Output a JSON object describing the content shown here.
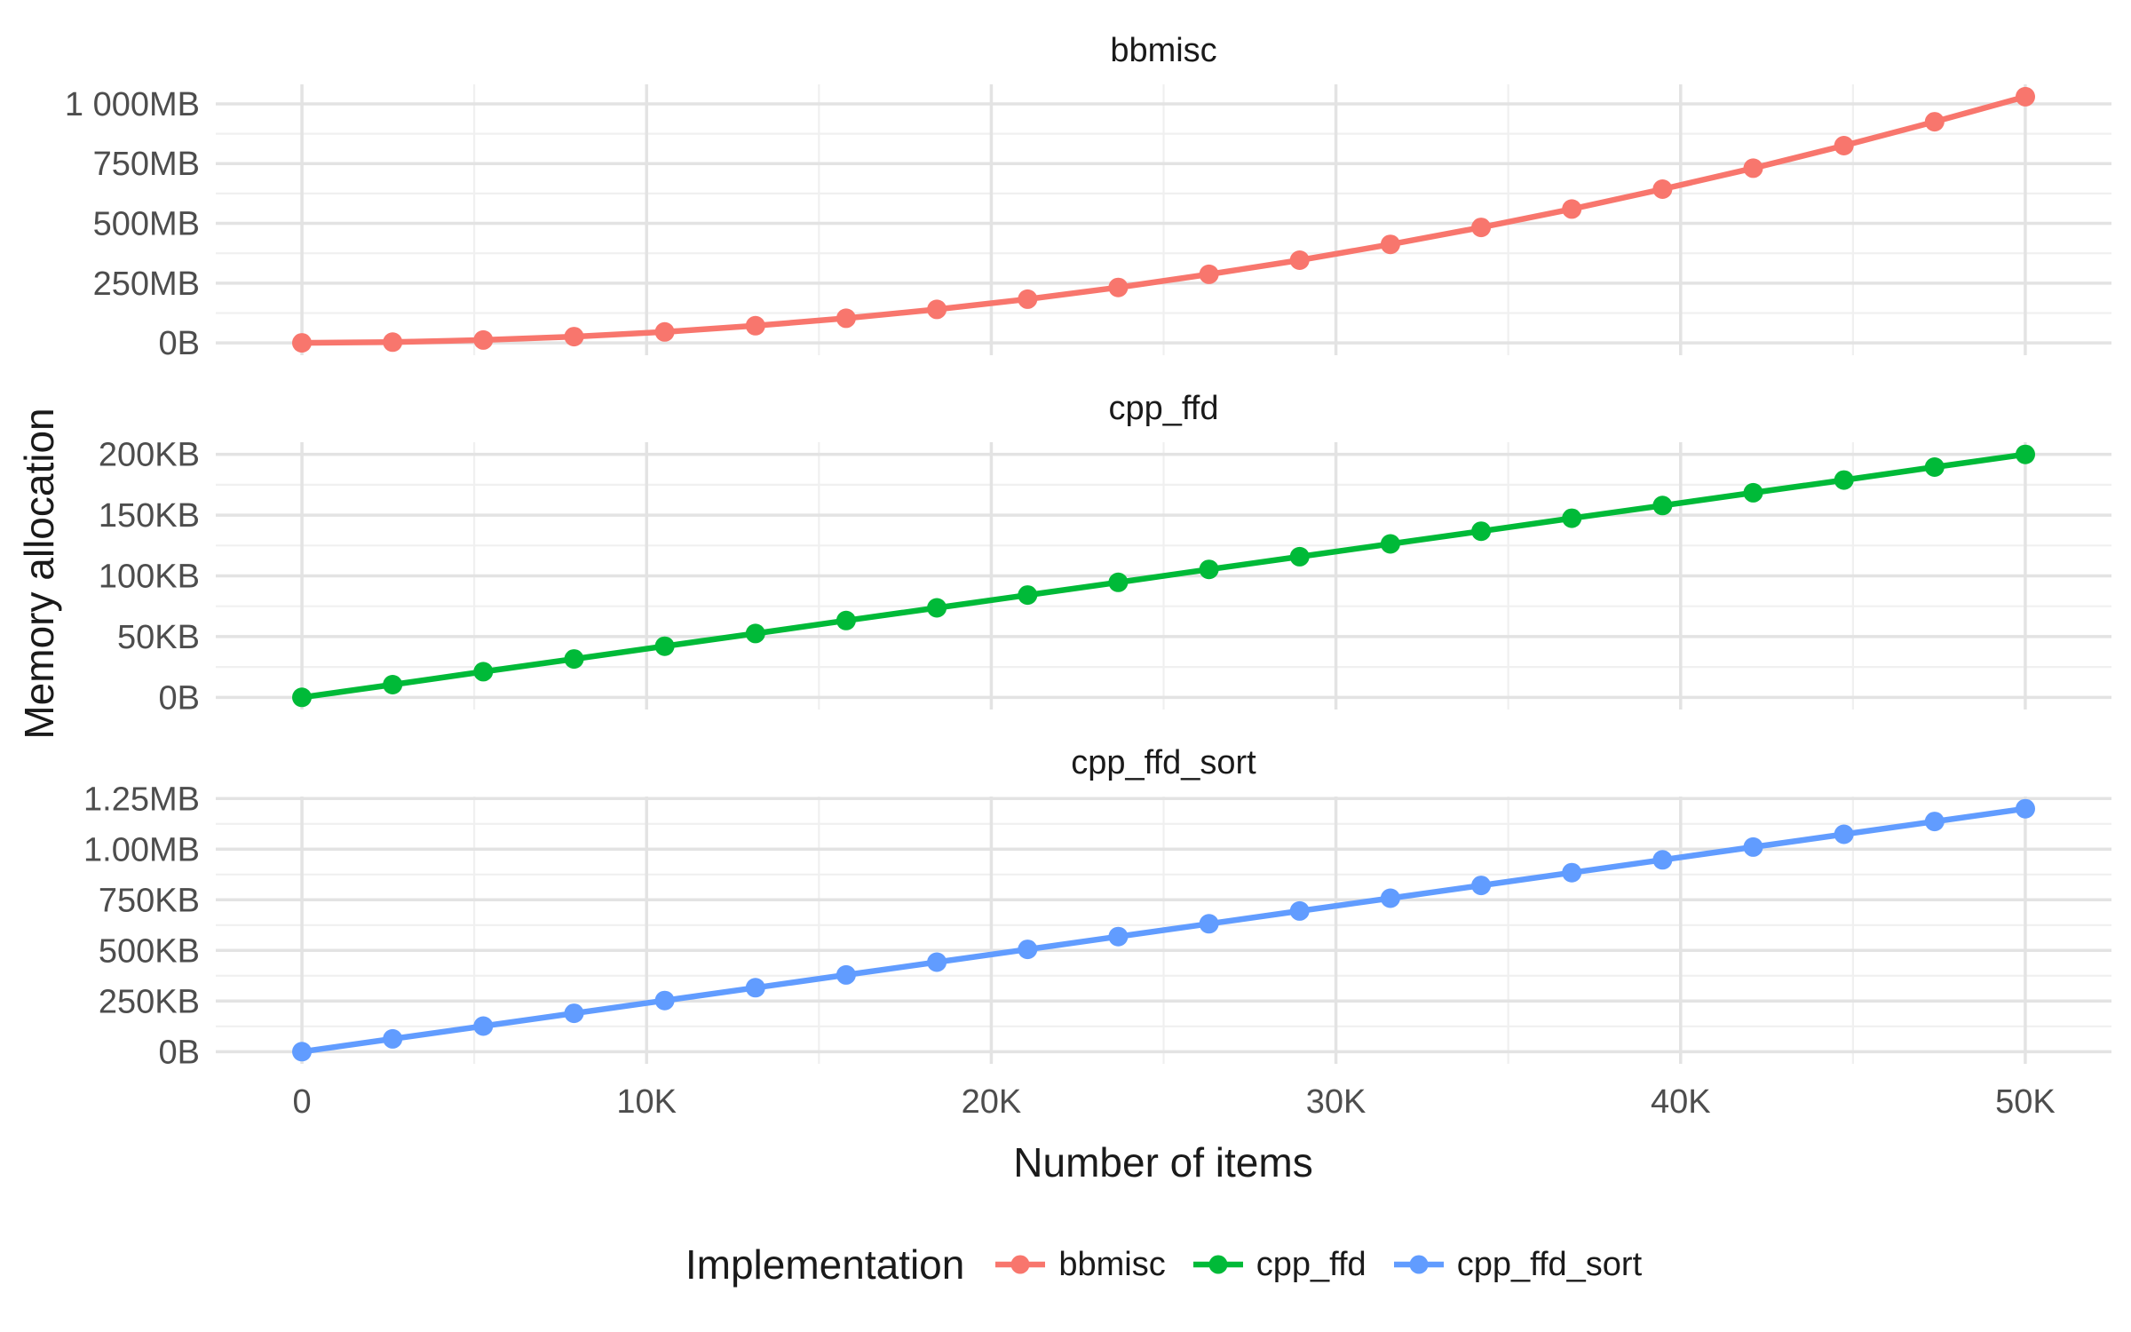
{
  "figure": {
    "y_axis_title": "Memory allocation",
    "x_axis_title": "Number of items",
    "legend": {
      "title": "Implementation",
      "items": [
        {
          "label": "bbmisc",
          "color": "#F8766D"
        },
        {
          "label": "cpp_ffd",
          "color": "#00BA38"
        },
        {
          "label": "cpp_ffd_sort",
          "color": "#619CFF"
        }
      ]
    },
    "colors": {
      "background": "#ffffff",
      "grid_major": "#e3e3e3",
      "grid_minor": "#f0f0f0",
      "tick_text": "#4d4d4d",
      "title_text": "#1a1a1a"
    }
  },
  "chart_data": {
    "type": "line",
    "title": "",
    "xlabel": "Number of items",
    "ylabel": "Memory allocation",
    "legend_position": "bottom",
    "grid": "major+minor",
    "xlim": [
      0,
      50000
    ],
    "x": [
      0,
      2632,
      5263,
      7895,
      10526,
      13158,
      15789,
      18421,
      21053,
      23684,
      26316,
      28947,
      31579,
      34211,
      36842,
      39474,
      42105,
      44737,
      47368,
      50000
    ],
    "x_ticks": [
      {
        "v": 0,
        "label": "0"
      },
      {
        "v": 10000,
        "label": "10K"
      },
      {
        "v": 20000,
        "label": "20K"
      },
      {
        "v": 30000,
        "label": "30K"
      },
      {
        "v": 40000,
        "label": "40K"
      },
      {
        "v": 50000,
        "label": "50K"
      }
    ],
    "x_minor_ticks": [
      5000,
      15000,
      25000,
      35000,
      45000
    ],
    "facets": [
      {
        "name": "bbmisc",
        "color": "#F8766D",
        "unit": "MB",
        "ylim": [
          0,
          1030
        ],
        "y_ticks": [
          {
            "v": 0,
            "label": "0B"
          },
          {
            "v": 250,
            "label": "250MB"
          },
          {
            "v": 500,
            "label": "500MB"
          },
          {
            "v": 750,
            "label": "750MB"
          },
          {
            "v": 1000,
            "label": "1 000MB"
          }
        ],
        "values": [
          0,
          3,
          12,
          26,
          46,
          72,
          103,
          140,
          183,
          232,
          287,
          346,
          412,
          483,
          560,
          643,
          731,
          825,
          925,
          1030
        ]
      },
      {
        "name": "cpp_ffd",
        "color": "#00BA38",
        "unit": "KB",
        "ylim": [
          0,
          200
        ],
        "y_ticks": [
          {
            "v": 0,
            "label": "0B"
          },
          {
            "v": 50,
            "label": "50KB"
          },
          {
            "v": 100,
            "label": "100KB"
          },
          {
            "v": 150,
            "label": "150KB"
          },
          {
            "v": 200,
            "label": "200KB"
          }
        ],
        "values": [
          0,
          10.5,
          21.1,
          31.6,
          42.1,
          52.6,
          63.2,
          73.7,
          84.2,
          94.7,
          105.3,
          115.8,
          126.3,
          136.8,
          147.4,
          157.9,
          168.4,
          178.9,
          189.5,
          200
        ]
      },
      {
        "name": "cpp_ffd_sort",
        "color": "#619CFF",
        "unit": "KB",
        "ylim": [
          0,
          1200
        ],
        "y_ticks": [
          {
            "v": 0,
            "label": "0B"
          },
          {
            "v": 250,
            "label": "250KB"
          },
          {
            "v": 500,
            "label": "500KB"
          },
          {
            "v": 750,
            "label": "750KB"
          },
          {
            "v": 1000,
            "label": "1.00MB"
          },
          {
            "v": 1250,
            "label": "1.25MB"
          }
        ],
        "values": [
          0,
          63.2,
          126.3,
          189.5,
          252.6,
          315.8,
          378.9,
          442.1,
          505.3,
          568.4,
          631.6,
          694.7,
          757.9,
          821.1,
          884.2,
          947.4,
          1010.5,
          1073.7,
          1136.8,
          1200
        ]
      }
    ]
  }
}
